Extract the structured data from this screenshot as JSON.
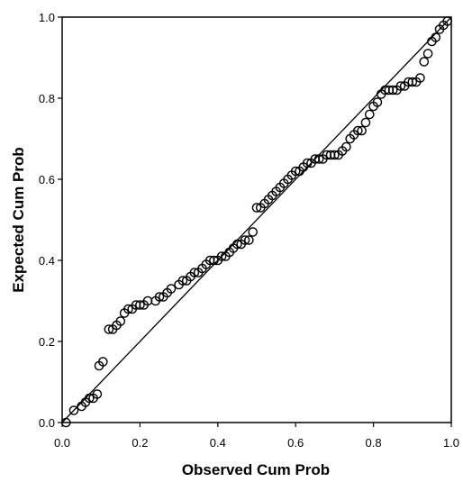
{
  "chart_data": {
    "type": "scatter",
    "title": "",
    "xlabel": "Observed Cum Prob",
    "ylabel": "Expected Cum Prob",
    "xlim": [
      0,
      1
    ],
    "ylim": [
      0,
      1
    ],
    "x_ticks": [
      "0.0",
      "0.2",
      "0.4",
      "0.6",
      "0.8",
      "1.0"
    ],
    "y_ticks": [
      "0.0",
      "0.2",
      "0.4",
      "0.6",
      "0.8",
      "1.0"
    ],
    "grid": false,
    "legend": "none",
    "reference_line": {
      "from": [
        0,
        0
      ],
      "to": [
        1,
        1
      ]
    },
    "colors": {
      "points": "#000000",
      "line": "#000000",
      "background": "#ffffff"
    },
    "series": [
      {
        "points": [
          [
            0.01,
            0.0
          ],
          [
            0.03,
            0.03
          ],
          [
            0.05,
            0.04
          ],
          [
            0.06,
            0.05
          ],
          [
            0.07,
            0.06
          ],
          [
            0.08,
            0.06
          ],
          [
            0.09,
            0.07
          ],
          [
            0.095,
            0.14
          ],
          [
            0.105,
            0.15
          ],
          [
            0.12,
            0.23
          ],
          [
            0.13,
            0.23
          ],
          [
            0.14,
            0.24
          ],
          [
            0.15,
            0.25
          ],
          [
            0.16,
            0.27
          ],
          [
            0.17,
            0.28
          ],
          [
            0.18,
            0.28
          ],
          [
            0.19,
            0.29
          ],
          [
            0.2,
            0.29
          ],
          [
            0.21,
            0.29
          ],
          [
            0.22,
            0.3
          ],
          [
            0.24,
            0.3
          ],
          [
            0.25,
            0.31
          ],
          [
            0.26,
            0.31
          ],
          [
            0.27,
            0.32
          ],
          [
            0.28,
            0.33
          ],
          [
            0.3,
            0.34
          ],
          [
            0.31,
            0.35
          ],
          [
            0.32,
            0.35
          ],
          [
            0.33,
            0.36
          ],
          [
            0.34,
            0.37
          ],
          [
            0.35,
            0.37
          ],
          [
            0.36,
            0.38
          ],
          [
            0.37,
            0.39
          ],
          [
            0.38,
            0.4
          ],
          [
            0.39,
            0.4
          ],
          [
            0.4,
            0.4
          ],
          [
            0.41,
            0.41
          ],
          [
            0.42,
            0.41
          ],
          [
            0.43,
            0.42
          ],
          [
            0.44,
            0.43
          ],
          [
            0.45,
            0.44
          ],
          [
            0.46,
            0.44
          ],
          [
            0.47,
            0.45
          ],
          [
            0.48,
            0.45
          ],
          [
            0.49,
            0.47
          ],
          [
            0.5,
            0.53
          ],
          [
            0.51,
            0.53
          ],
          [
            0.52,
            0.54
          ],
          [
            0.53,
            0.55
          ],
          [
            0.54,
            0.56
          ],
          [
            0.55,
            0.57
          ],
          [
            0.56,
            0.58
          ],
          [
            0.57,
            0.59
          ],
          [
            0.58,
            0.6
          ],
          [
            0.59,
            0.61
          ],
          [
            0.6,
            0.62
          ],
          [
            0.61,
            0.62
          ],
          [
            0.62,
            0.63
          ],
          [
            0.63,
            0.64
          ],
          [
            0.64,
            0.64
          ],
          [
            0.65,
            0.65
          ],
          [
            0.66,
            0.65
          ],
          [
            0.67,
            0.65
          ],
          [
            0.68,
            0.66
          ],
          [
            0.69,
            0.66
          ],
          [
            0.7,
            0.66
          ],
          [
            0.71,
            0.66
          ],
          [
            0.72,
            0.67
          ],
          [
            0.73,
            0.68
          ],
          [
            0.74,
            0.7
          ],
          [
            0.75,
            0.71
          ],
          [
            0.76,
            0.72
          ],
          [
            0.77,
            0.72
          ],
          [
            0.78,
            0.74
          ],
          [
            0.79,
            0.76
          ],
          [
            0.8,
            0.78
          ],
          [
            0.81,
            0.79
          ],
          [
            0.82,
            0.81
          ],
          [
            0.83,
            0.82
          ],
          [
            0.84,
            0.82
          ],
          [
            0.85,
            0.82
          ],
          [
            0.86,
            0.82
          ],
          [
            0.87,
            0.83
          ],
          [
            0.88,
            0.83
          ],
          [
            0.89,
            0.84
          ],
          [
            0.9,
            0.84
          ],
          [
            0.91,
            0.84
          ],
          [
            0.92,
            0.85
          ],
          [
            0.93,
            0.89
          ],
          [
            0.94,
            0.91
          ],
          [
            0.95,
            0.94
          ],
          [
            0.96,
            0.95
          ],
          [
            0.97,
            0.97
          ],
          [
            0.98,
            0.98
          ],
          [
            0.99,
            0.99
          ]
        ]
      }
    ]
  }
}
